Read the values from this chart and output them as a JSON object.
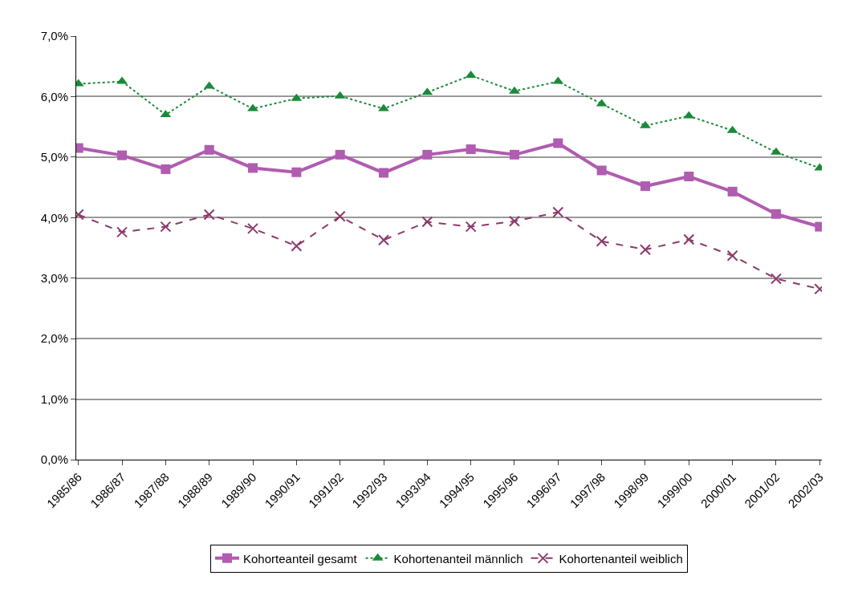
{
  "chart_data": {
    "type": "line",
    "categories": [
      "1985/86",
      "1986/87",
      "1987/88",
      "1988/89",
      "1989/90",
      "1990/91",
      "1991/92",
      "1992/93",
      "1993/94",
      "1994/95",
      "1995/96",
      "1996/97",
      "1997/98",
      "1998/99",
      "1999/00",
      "2000/01",
      "2001/02",
      "2002/03"
    ],
    "series": [
      {
        "name": "Kohorteanteil gesamt",
        "color": "#b05cb0",
        "marker": "square",
        "line_style": "solid",
        "values": [
          5.15,
          5.03,
          4.8,
          5.12,
          4.82,
          4.75,
          5.04,
          4.74,
          5.04,
          5.13,
          5.04,
          5.23,
          4.78,
          4.52,
          4.68,
          4.43,
          4.06,
          3.85
        ]
      },
      {
        "name": "Kohortenanteil männlich",
        "color": "#1a8a3a",
        "marker": "triangle",
        "line_style": "dotted",
        "values": [
          6.21,
          6.25,
          5.7,
          6.17,
          5.8,
          5.97,
          6.01,
          5.8,
          6.07,
          6.35,
          6.09,
          6.25,
          5.88,
          5.52,
          5.68,
          5.44,
          5.08,
          4.82
        ]
      },
      {
        "name": "Kohortenanteil weiblich",
        "color": "#8b3a6b",
        "marker": "cross",
        "line_style": "dashed",
        "values": [
          4.05,
          3.76,
          3.85,
          4.05,
          3.82,
          3.53,
          4.02,
          3.63,
          3.93,
          3.85,
          3.94,
          4.09,
          3.61,
          3.47,
          3.64,
          3.37,
          2.99,
          2.82
        ]
      }
    ],
    "ylim": [
      0,
      7
    ],
    "yticks": [
      {
        "value": 0,
        "label": "0,0%"
      },
      {
        "value": 1,
        "label": "1,0%"
      },
      {
        "value": 2,
        "label": "2,0%"
      },
      {
        "value": 3,
        "label": "3,0%"
      },
      {
        "value": 4,
        "label": "4,0%"
      },
      {
        "value": 5,
        "label": "5,0%"
      },
      {
        "value": 6,
        "label": "6,0%"
      },
      {
        "value": 7,
        "label": "7,0%"
      }
    ],
    "grid": "y",
    "legend": "bottom"
  }
}
